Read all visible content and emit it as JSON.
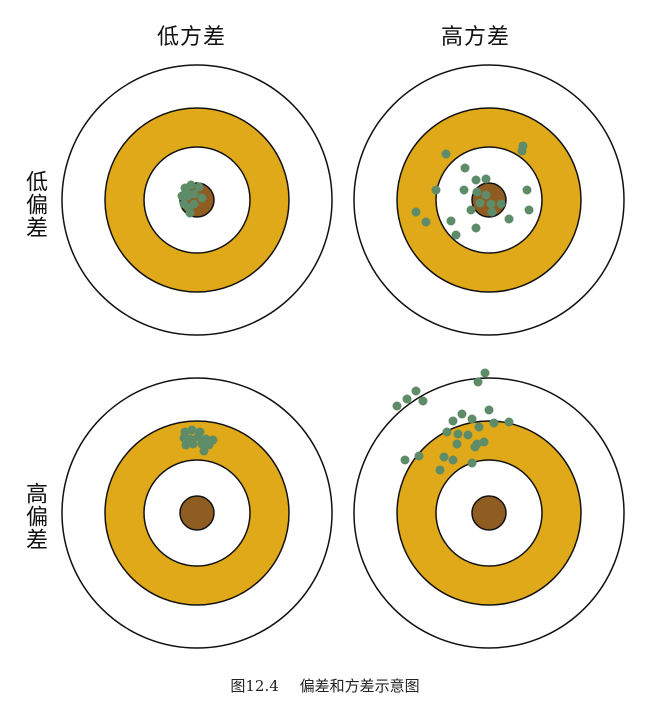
{
  "columns": {
    "low_variance": "低方差",
    "high_variance": "高方差"
  },
  "rows": {
    "low_bias": "低偏差",
    "high_bias": "高偏差"
  },
  "caption": {
    "figure_number": "图12.4",
    "title": "偏差和方差示意图"
  },
  "colors": {
    "ring_stroke": "#111111",
    "outer_ring": "#ffffff",
    "gold_ring": "#E0A91A",
    "bullseye": "#8F5C21",
    "shot": "#5E8B68"
  },
  "targets": [
    {
      "id": "low-bias-low-variance",
      "shots": [
        [
          -12,
          -12
        ],
        [
          -6,
          -15
        ],
        [
          2,
          -13
        ],
        [
          -15,
          -4
        ],
        [
          -9,
          -4
        ],
        [
          -3,
          -6
        ],
        [
          5,
          -2
        ],
        [
          -13,
          4
        ],
        [
          -8,
          8
        ],
        [
          -3,
          4
        ],
        [
          -7,
          13
        ],
        [
          -11,
          -9
        ]
      ]
    },
    {
      "id": "low-bias-high-variance",
      "shots": [
        [
          -43,
          -46
        ],
        [
          34,
          -54
        ],
        [
          -24,
          -32
        ],
        [
          -13,
          -20
        ],
        [
          -3,
          -21
        ],
        [
          33,
          -49
        ],
        [
          -53,
          -10
        ],
        [
          -25,
          -10
        ],
        [
          -12,
          -8
        ],
        [
          -9,
          3
        ],
        [
          -3,
          -5
        ],
        [
          2,
          4
        ],
        [
          12,
          4
        ],
        [
          38,
          -10
        ],
        [
          -73,
          12
        ],
        [
          -63,
          22
        ],
        [
          -38,
          21
        ],
        [
          -18,
          10
        ],
        [
          3,
          12
        ],
        [
          20,
          19
        ],
        [
          40,
          10
        ],
        [
          -33,
          35
        ],
        [
          -13,
          28
        ]
      ]
    },
    {
      "id": "high-bias-low-variance",
      "shots": [
        [
          -12,
          -81
        ],
        [
          -5,
          -83
        ],
        [
          3,
          -81
        ],
        [
          -13,
          -75
        ],
        [
          -7,
          -74
        ],
        [
          1,
          -76
        ],
        [
          9,
          -74
        ],
        [
          16,
          -73
        ],
        [
          -11,
          -68
        ],
        [
          -4,
          -69
        ],
        [
          5,
          -69
        ],
        [
          12,
          -68
        ],
        [
          7,
          -62
        ]
      ]
    },
    {
      "id": "high-bias-high-variance",
      "shots": [
        [
          -4,
          -140
        ],
        [
          -11,
          -131
        ],
        [
          -82,
          -114
        ],
        [
          -73,
          -122
        ],
        [
          -92,
          -107
        ],
        [
          -66,
          -112
        ],
        [
          -36,
          -92
        ],
        [
          -27,
          -99
        ],
        [
          -17,
          -94
        ],
        [
          0,
          -103
        ],
        [
          5,
          -90
        ],
        [
          20,
          -91
        ],
        [
          -42,
          -81
        ],
        [
          -31,
          -79
        ],
        [
          -21,
          -78
        ],
        [
          -10,
          -86
        ],
        [
          -32,
          -69
        ],
        [
          -14,
          -66
        ],
        [
          -5,
          -71
        ],
        [
          -45,
          -56
        ],
        [
          -36,
          -53
        ],
        [
          -17,
          -50
        ],
        [
          -12,
          -69
        ],
        [
          -84,
          -53
        ],
        [
          -70,
          -57
        ],
        [
          -49,
          -43
        ]
      ]
    }
  ]
}
